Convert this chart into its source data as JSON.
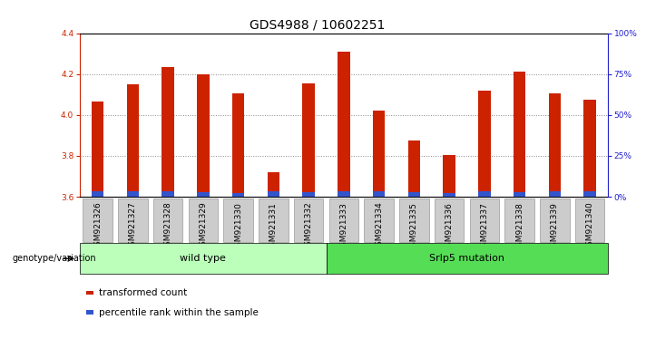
{
  "title": "GDS4988 / 10602251",
  "samples": [
    "GSM921326",
    "GSM921327",
    "GSM921328",
    "GSM921329",
    "GSM921330",
    "GSM921331",
    "GSM921332",
    "GSM921333",
    "GSM921334",
    "GSM921335",
    "GSM921336",
    "GSM921337",
    "GSM921338",
    "GSM921339",
    "GSM921340"
  ],
  "red_values": [
    4.065,
    4.15,
    4.235,
    4.2,
    4.105,
    3.72,
    4.155,
    4.31,
    4.02,
    3.875,
    3.805,
    4.12,
    4.21,
    4.105,
    4.075
  ],
  "blue_values": [
    0.025,
    0.028,
    0.025,
    0.022,
    0.018,
    0.025,
    0.022,
    0.025,
    0.025,
    0.022,
    0.018,
    0.025,
    0.022,
    0.025,
    0.025
  ],
  "ymin": 3.6,
  "ymax": 4.4,
  "yright_min": 0,
  "yright_max": 100,
  "yticks_left": [
    3.6,
    3.8,
    4.0,
    4.2,
    4.4
  ],
  "yticks_right": [
    0,
    25,
    50,
    75,
    100
  ],
  "ytick_labels_right": [
    "0%",
    "25%",
    "50%",
    "75%",
    "100%"
  ],
  "grid_values": [
    3.8,
    4.0,
    4.2
  ],
  "bar_color_red": "#cc2200",
  "bar_color_blue": "#3355cc",
  "bar_width": 0.35,
  "group1_label": "wild type",
  "group2_label": "Srlp5 mutation",
  "group1_count": 7,
  "group2_count": 8,
  "group_label": "genotype/variation",
  "legend_red": "transformed count",
  "legend_blue": "percentile rank within the sample",
  "left_tick_color": "#cc2200",
  "right_tick_color": "#2222cc",
  "title_fontsize": 10,
  "tick_fontsize": 6.5,
  "group_box_color_1": "#bbffbb",
  "group_box_color_2": "#55dd55",
  "xticklabel_bg": "#cccccc",
  "xticklabel_edge": "#999999"
}
